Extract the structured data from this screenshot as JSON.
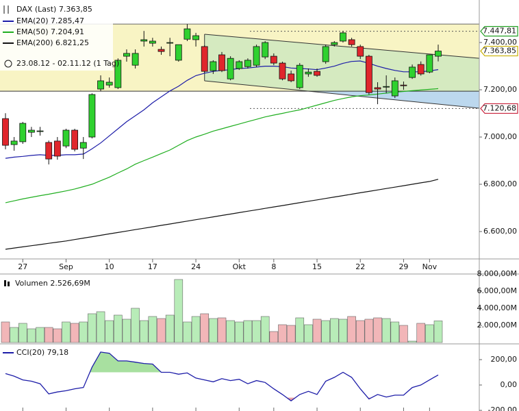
{
  "chart_data": [
    {
      "type": "candlestick",
      "title": "DAX (Last) 7.363,85",
      "subtitle": "23.08.12 - 02.11.12 (1 Tag)",
      "categories": [
        null,
        null,
        "27",
        null,
        null,
        null,
        null,
        "Sep",
        null,
        null,
        null,
        null,
        "10",
        null,
        null,
        null,
        null,
        "17",
        null,
        null,
        null,
        null,
        "24",
        null,
        null,
        null,
        null,
        "Okt",
        null,
        null,
        null,
        "8",
        null,
        null,
        null,
        null,
        "15",
        null,
        null,
        null,
        null,
        "22",
        null,
        null,
        null,
        null,
        "29",
        null,
        null,
        "Nov",
        null
      ],
      "open": [
        7078,
        6968,
        6980,
        7020,
        7023,
        6977,
        6983,
        6962,
        7029,
        6953,
        7000,
        7203,
        7220,
        7209,
        7342,
        7304,
        7406,
        7397,
        7371,
        7400,
        7325,
        7414,
        7412,
        7383,
        7281,
        7348,
        7246,
        7290,
        7298,
        7304,
        7339,
        7342,
        7313,
        7267,
        7209,
        7267,
        7278,
        7319,
        7391,
        7406,
        7412,
        7383,
        7342,
        7209,
        7214,
        7174,
        7220,
        7252,
        7307,
        7275,
        7342
      ],
      "high": [
        7101,
        7000,
        7064,
        7043,
        7043,
        6985,
        7000,
        7035,
        7035,
        7000,
        7185,
        7261,
        7252,
        7333,
        7371,
        7371,
        7449,
        7420,
        7383,
        7420,
        7391,
        7478,
        7441,
        7388,
        7325,
        7360,
        7342,
        7325,
        7333,
        7391,
        7406,
        7354,
        7319,
        7281,
        7313,
        7290,
        7290,
        7391,
        7406,
        7449,
        7420,
        7391,
        7348,
        7232,
        7261,
        7252,
        7235,
        7307,
        7320,
        7348,
        7391
      ],
      "low": [
        6948,
        6942,
        6971,
        7000,
        7006,
        6884,
        6904,
        6953,
        6939,
        6907,
        6994,
        7194,
        7209,
        7203,
        7319,
        7290,
        7383,
        7383,
        7348,
        7342,
        7319,
        7406,
        7383,
        7272,
        7267,
        7275,
        7240,
        7284,
        7290,
        7296,
        7330,
        7304,
        7240,
        7232,
        7203,
        7255,
        7255,
        7310,
        7383,
        7400,
        7383,
        7330,
        7180,
        7139,
        7185,
        7165,
        7200,
        7246,
        7260,
        7270,
        7320
      ],
      "close": [
        6965,
        6983,
        7058,
        7029,
        7026,
        6907,
        6919,
        7029,
        6948,
        6977,
        7180,
        7238,
        7232,
        7325,
        7354,
        7354,
        7412,
        7406,
        7362,
        7400,
        7391,
        7458,
        7429,
        7278,
        7319,
        7281,
        7333,
        7319,
        7325,
        7383,
        7400,
        7313,
        7246,
        7238,
        7304,
        7275,
        7261,
        7383,
        7400,
        7441,
        7391,
        7342,
        7188,
        7203,
        7214,
        7238,
        7217,
        7296,
        7267,
        7348,
        7363.85
      ],
      "up_color": "#2fd12f",
      "down_color": "#e0262c",
      "series": [
        {
          "name": "EMA(20) 7.285,47",
          "color": "#1c1ca8",
          "values": [
            6910,
            6915,
            6918,
            6922,
            6925,
            6922,
            6922,
            6925,
            6925,
            6928,
            6950,
            6975,
            7005,
            7035,
            7065,
            7090,
            7115,
            7145,
            7170,
            7195,
            7215,
            7240,
            7260,
            7270,
            7278,
            7282,
            7285,
            7290,
            7292,
            7296,
            7300,
            7300,
            7298,
            7292,
            7290,
            7288,
            7285,
            7292,
            7300,
            7312,
            7320,
            7322,
            7312,
            7300,
            7290,
            7282,
            7276,
            7276,
            7276,
            7280,
            7285.47
          ]
        },
        {
          "name": "EMA(50) 7.204,91",
          "color": "#1fae1f",
          "values": [
            6722,
            6730,
            6738,
            6745,
            6752,
            6758,
            6765,
            6772,
            6780,
            6790,
            6800,
            6815,
            6830,
            6848,
            6865,
            6885,
            6900,
            6915,
            6930,
            6945,
            6965,
            6985,
            7000,
            7012,
            7025,
            7035,
            7045,
            7055,
            7065,
            7075,
            7085,
            7093,
            7100,
            7108,
            7115,
            7125,
            7135,
            7145,
            7155,
            7163,
            7170,
            7175,
            7178,
            7182,
            7186,
            7190,
            7193,
            7196,
            7199,
            7202,
            7204.91
          ]
        },
        {
          "name": "EMA(200) 6.821,25",
          "color": "#111111",
          "values": [
            6525,
            6530,
            6535,
            6540,
            6545,
            6550,
            6555,
            6560,
            6566,
            6572,
            6578,
            6584,
            6590,
            6596,
            6602,
            6608,
            6614,
            6620,
            6626,
            6632,
            6638,
            6644,
            6650,
            6656,
            6662,
            6668,
            6674,
            6680,
            6686,
            6692,
            6698,
            6704,
            6710,
            6716,
            6722,
            6728,
            6734,
            6740,
            6746,
            6752,
            6758,
            6764,
            6770,
            6776,
            6782,
            6788,
            6794,
            6800,
            6806,
            6812,
            6821.25
          ]
        }
      ],
      "ylim": [
        6484,
        7580
      ],
      "yticks": [
        {
          "value": 6600,
          "label": "6.600,00"
        },
        {
          "value": 6800,
          "label": "6.800,00"
        },
        {
          "value": 7000,
          "label": "7.000,00"
        },
        {
          "value": 7200,
          "label": "7.200,00"
        },
        {
          "value": 7400,
          "label": "7.400,00"
        }
      ],
      "band": [
        7194,
        7478
      ],
      "channel": {
        "upper": [
          7435,
          7333
        ],
        "lower": [
          7238,
          7122
        ]
      },
      "levels": [
        {
          "value": 7447.81,
          "label": "7.447,81",
          "color": "#22a022",
          "dashed": true
        },
        {
          "value": 7363.85,
          "label": "7.363,85",
          "color": "#c9b000",
          "dashed": false
        },
        {
          "value": 7120.68,
          "label": "7.120,68",
          "color": "#c8203a",
          "dashed": true
        }
      ]
    },
    {
      "type": "bar",
      "title": "Volumen 2.526,69M",
      "values": [
        2400,
        1760,
        2240,
        1600,
        1760,
        1760,
        1600,
        2400,
        2240,
        2400,
        3360,
        3600,
        2560,
        3200,
        2720,
        4000,
        2560,
        3040,
        2800,
        3200,
        7360,
        2400,
        3040,
        3360,
        2800,
        2880,
        2560,
        2400,
        2560,
        2560,
        3040,
        1280,
        2080,
        2000,
        2880,
        2080,
        2720,
        2560,
        2800,
        2720,
        3040,
        2560,
        2720,
        2880,
        2800,
        2400,
        2000,
        160,
        2240,
        2080,
        2526.69
      ],
      "up_color": "#b8ecb8",
      "down_color": "#f2b6b8",
      "ylim": [
        0,
        8160
      ],
      "yticks": [
        {
          "value": 2000,
          "label": "2.000,00M"
        },
        {
          "value": 4000,
          "label": "4.000,00M"
        },
        {
          "value": 6000,
          "label": "6.000,00M"
        },
        {
          "value": 8000,
          "label": "8.000,00M"
        }
      ]
    },
    {
      "type": "line",
      "title": "CCI(20) 79,18",
      "color": "#1c1ca8",
      "values": [
        90,
        70,
        40,
        30,
        10,
        -70,
        -55,
        -45,
        -30,
        -20,
        140,
        260,
        250,
        190,
        190,
        180,
        170,
        165,
        100,
        100,
        85,
        95,
        55,
        40,
        25,
        50,
        35,
        45,
        10,
        35,
        20,
        -30,
        -75,
        -125,
        -75,
        -50,
        -75,
        30,
        60,
        100,
        60,
        -30,
        -110,
        -75,
        -95,
        -80,
        -80,
        -20,
        0,
        40,
        79.18
      ],
      "ylim": [
        -205,
        308
      ],
      "yticks": [
        {
          "value": -200,
          "label": "-200,00"
        },
        {
          "value": 0,
          "label": "0,00"
        },
        {
          "value": 200,
          "label": "200,00"
        }
      ],
      "fill_above": 100,
      "fill_below": -100,
      "fill_above_color": "#a8e0a0",
      "fill_below_color": "#e8a0a8"
    }
  ]
}
